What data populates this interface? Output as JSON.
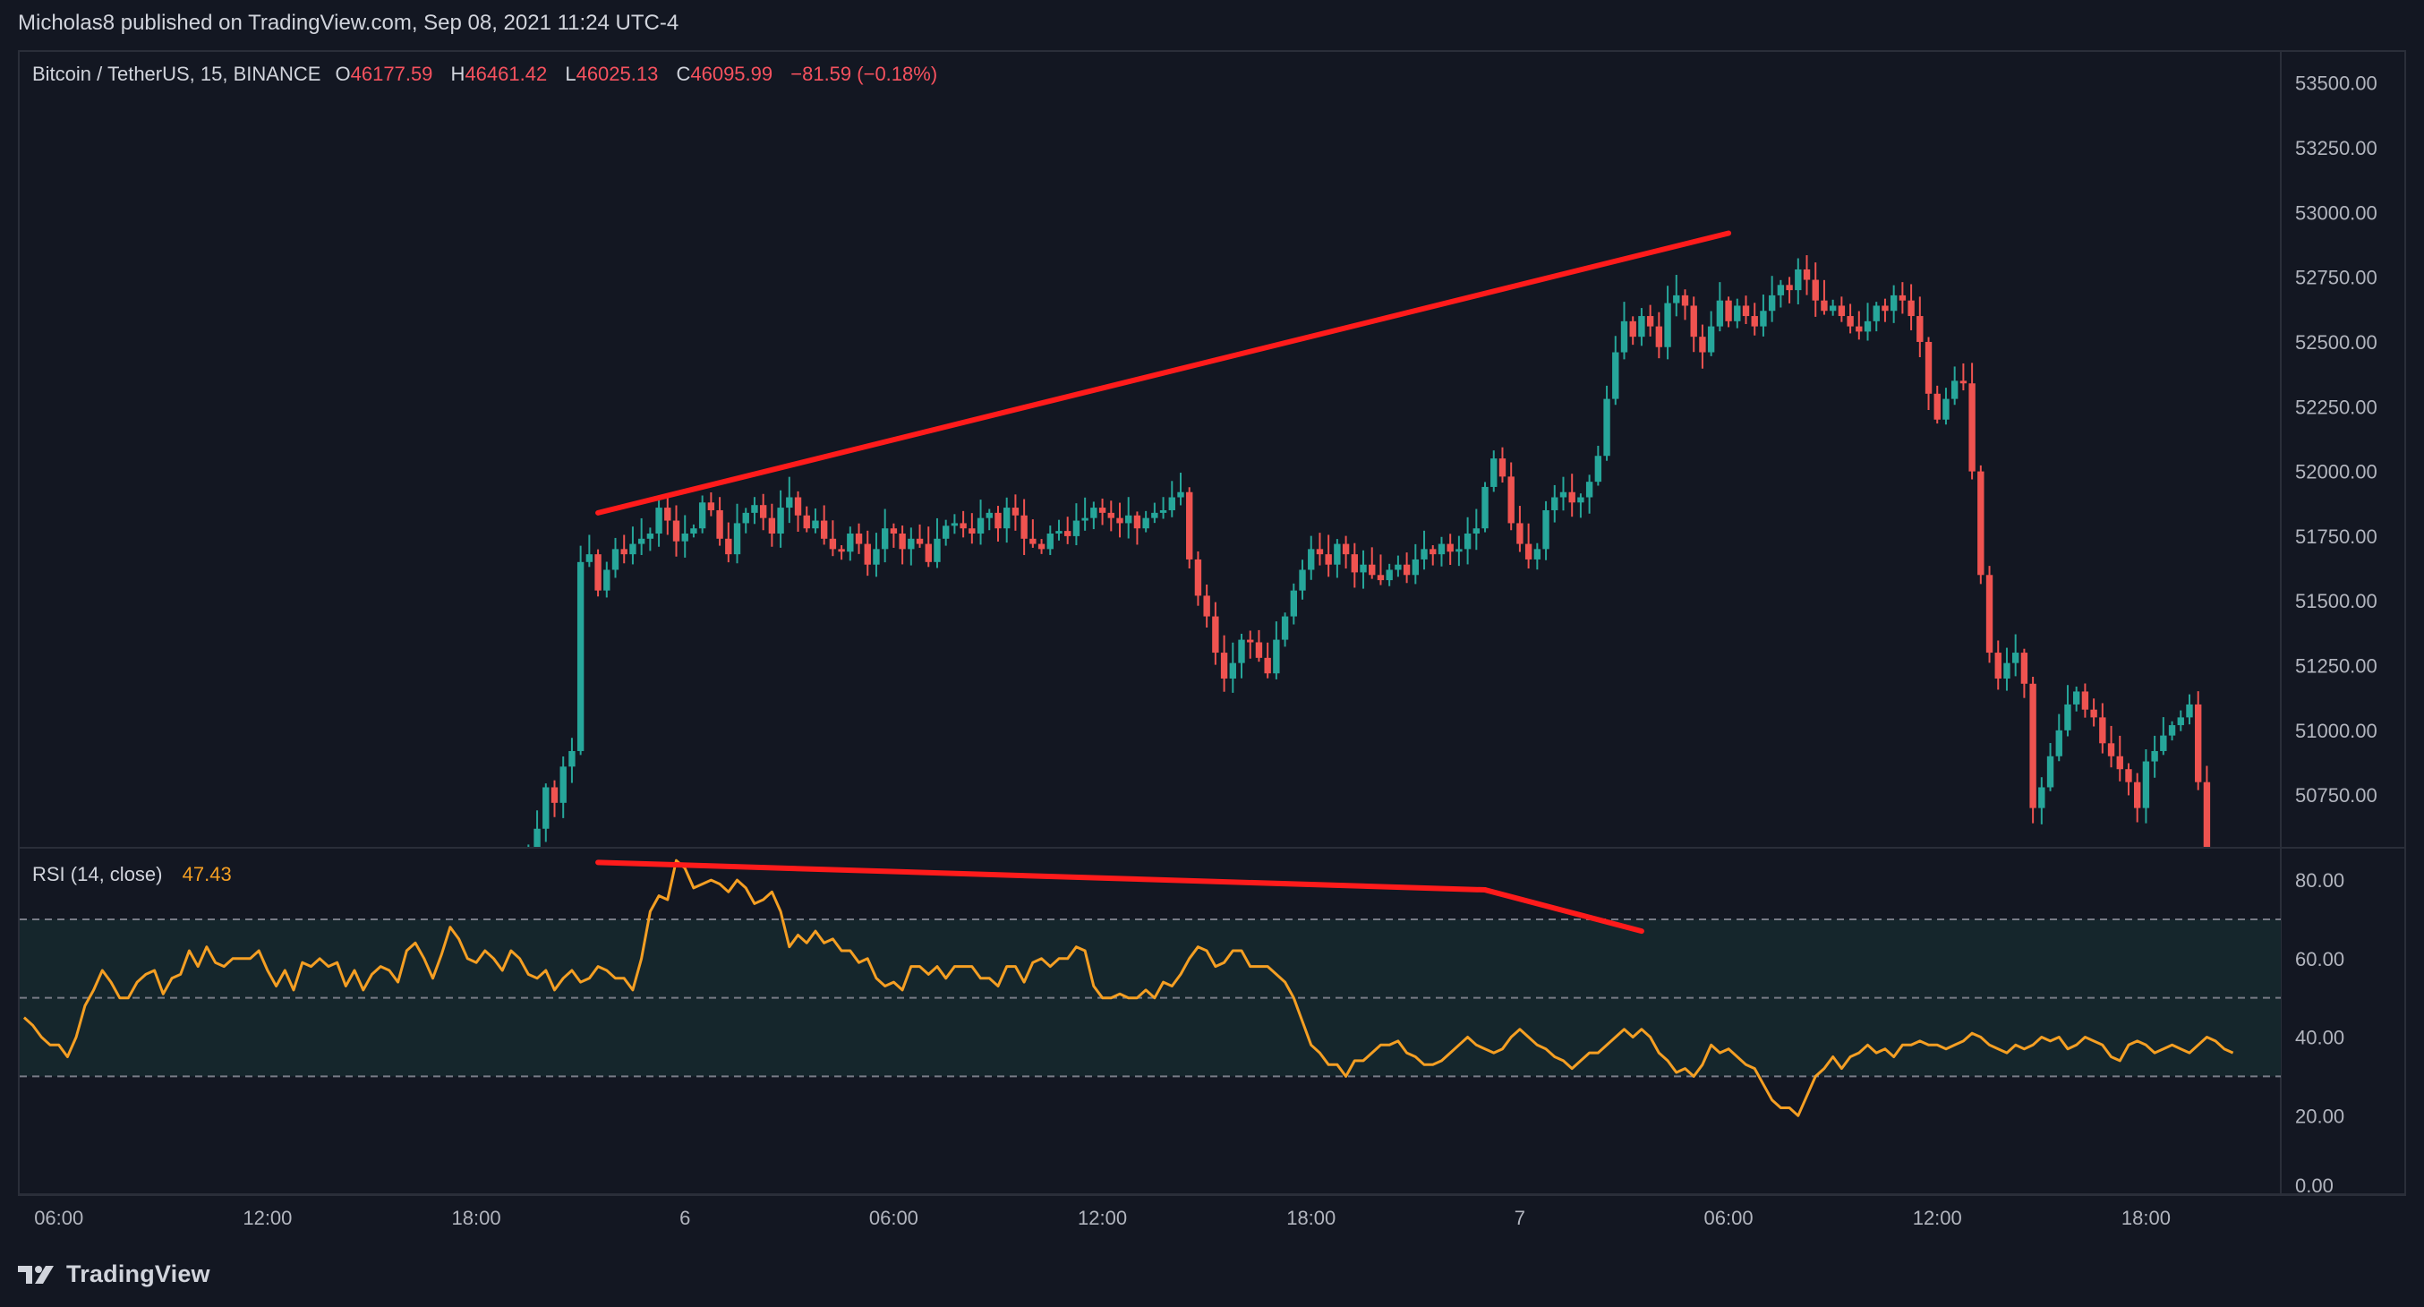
{
  "header": {
    "published_by": "Micholas8 published on TradingView.com, Sep 08, 2021 11:24 UTC-4"
  },
  "legend": {
    "symbol": "Bitcoin / TetherUS, 15, BINANCE",
    "open_label": "O",
    "open": "46177.59",
    "high_label": "H",
    "high": "46461.42",
    "low_label": "L",
    "low": "46025.13",
    "close_label": "C",
    "close": "46095.99",
    "change": "−81.59 (−0.18%)"
  },
  "rsi_legend": {
    "name": "RSI (14, close)",
    "value": "47.43"
  },
  "colors": {
    "background": "#131722",
    "up_candle": "#26a69a",
    "down_candle": "#ef5350",
    "rsi_line": "#f59f23",
    "trendline": "#ff1b1b",
    "rsi_band_fill": "#15262c",
    "grid_border": "#2a2e39"
  },
  "footer": {
    "brand": "TradingView",
    "logo_icon": "tradingview-logo-icon"
  },
  "chart_data": [
    {
      "type": "candlestick",
      "ylim": [
        50550,
        53620
      ],
      "price_ticks": [
        "53500.00",
        "53250.00",
        "53000.00",
        "52750.00",
        "52500.00",
        "52250.00",
        "52000.00",
        "51750.00",
        "51500.00",
        "51250.00",
        "51000.00",
        "50750.00"
      ],
      "x_labels": [
        "06:00",
        "12:00",
        "18:00",
        "6",
        "06:00",
        "12:00",
        "18:00",
        "7",
        "06:00",
        "12:00",
        "18:00"
      ],
      "x_label_bars": [
        4,
        28,
        52,
        76,
        100,
        124,
        148,
        172,
        196,
        220,
        244
      ],
      "bars_total": 260,
      "first_visible_bar": 58,
      "closes": [
        50500,
        50620,
        50780,
        50720,
        50860,
        50920,
        51650,
        51680,
        51540,
        51620,
        51700,
        51680,
        51720,
        51740,
        51760,
        51860,
        51810,
        51730,
        51760,
        51780,
        51880,
        51850,
        51740,
        51680,
        51800,
        51840,
        51870,
        51820,
        51760,
        51860,
        51900,
        51830,
        51780,
        51810,
        51740,
        51700,
        51690,
        51760,
        51720,
        51640,
        51700,
        51780,
        51760,
        51700,
        51740,
        51720,
        51650,
        51740,
        51790,
        51800,
        51780,
        51760,
        51820,
        51840,
        51780,
        51860,
        51830,
        51740,
        51720,
        51700,
        51760,
        51770,
        51750,
        51810,
        51820,
        51860,
        51840,
        51820,
        51800,
        51830,
        51780,
        51820,
        51840,
        51850,
        51900,
        51920,
        51660,
        51520,
        51440,
        51300,
        51200,
        51260,
        51350,
        51340,
        51280,
        51220,
        51350,
        51440,
        51540,
        51620,
        51700,
        51680,
        51640,
        51720,
        51680,
        51610,
        51640,
        51600,
        51580,
        51620,
        51640,
        51600,
        51660,
        51700,
        51680,
        51720,
        51690,
        51700,
        51760,
        51780,
        51940,
        52050,
        51980,
        51800,
        51720,
        51660,
        51700,
        51850,
        51900,
        51920,
        51880,
        51900,
        51960,
        52060,
        52280,
        52460,
        52580,
        52520,
        52600,
        52560,
        52480,
        52650,
        52680,
        52640,
        52520,
        52460,
        52560,
        52660,
        52580,
        52640,
        52600,
        52560,
        52620,
        52680,
        52720,
        52700,
        52780,
        52740,
        52660,
        52620,
        52640,
        52600,
        52560,
        52540,
        52580,
        52640,
        52620,
        52680,
        52660,
        52600,
        52500,
        52300,
        52200,
        52280,
        52350,
        52340,
        52000,
        51600,
        51300,
        51200,
        51260,
        51300,
        51180,
        50700,
        50780,
        50900,
        51000,
        51100,
        51150,
        51080,
        51050,
        50950,
        50900,
        50850,
        50800,
        50700,
        50880,
        50920,
        50980,
        51020,
        51050,
        51100,
        50800,
        50500
      ],
      "rsi_values": [
        45,
        43,
        40,
        38,
        38,
        35,
        40,
        48,
        52,
        57,
        54,
        50,
        50,
        54,
        56,
        57,
        51,
        55,
        56,
        62,
        58,
        63,
        59,
        58,
        60,
        60,
        60,
        62,
        57,
        53,
        57,
        52,
        59,
        58,
        60,
        58,
        59,
        53,
        57,
        52,
        56,
        58,
        57,
        54,
        62,
        64,
        60,
        55,
        61,
        68,
        65,
        60,
        59,
        62,
        60,
        57,
        62,
        60,
        56,
        55,
        57,
        52,
        55,
        57,
        54,
        55,
        58,
        57,
        55,
        55,
        52,
        60,
        72,
        76,
        75,
        85,
        83,
        78,
        79,
        80,
        79,
        77,
        80,
        78,
        74,
        75,
        77,
        72,
        63,
        66,
        64,
        67,
        64,
        65,
        62,
        62,
        59,
        60,
        55,
        53,
        54,
        52,
        58,
        58,
        56,
        58,
        55,
        58,
        58,
        58,
        55,
        55,
        53,
        58,
        58,
        54,
        59,
        60,
        58,
        60,
        60,
        63,
        62,
        53,
        50,
        50,
        51,
        50,
        50,
        52,
        50,
        54,
        53,
        56,
        60,
        63,
        62,
        58,
        59,
        62,
        62,
        58,
        58,
        58,
        56,
        54,
        50,
        44,
        38,
        36,
        33,
        33,
        30,
        34,
        34,
        36,
        38,
        38,
        39,
        36,
        35,
        33,
        33,
        34,
        36,
        38,
        40,
        38,
        37,
        36,
        37,
        40,
        42,
        40,
        38,
        37,
        35,
        34,
        32,
        34,
        36,
        36,
        38,
        40,
        42,
        40,
        42,
        40,
        36,
        34,
        31,
        32,
        30,
        33,
        38,
        36,
        37,
        35,
        33,
        32,
        28,
        24,
        22,
        22,
        20,
        25,
        30,
        32,
        35,
        32,
        35,
        36,
        38,
        36,
        37,
        35,
        38,
        38,
        39,
        38,
        38,
        37,
        38,
        39,
        41,
        40,
        38,
        37,
        36,
        38,
        37,
        38,
        40,
        39,
        40,
        37,
        38,
        40,
        39,
        38,
        35,
        34,
        38,
        39,
        38,
        36,
        37,
        38,
        37,
        36,
        38,
        40,
        39,
        37,
        36
      ],
      "trendlines": [
        {
          "from_bar": 66,
          "from_price": 51840,
          "to_bar": 196,
          "to_price": 52920
        }
      ]
    },
    {
      "type": "line",
      "name": "RSI (14, close)",
      "ylim": [
        0,
        88
      ],
      "y_ticks": [
        "80.00",
        "60.00",
        "40.00",
        "20.00",
        "0.00"
      ],
      "bands": {
        "upper": 70,
        "middle": 50,
        "lower": 30
      },
      "trendlines": [
        {
          "from_bar": 66,
          "from_value": 84.5,
          "to_bar": 168,
          "to_value": 77.5
        },
        {
          "from_bar": 168,
          "from_value": 77.5,
          "to_bar": 186,
          "to_value": 67
        }
      ]
    }
  ]
}
